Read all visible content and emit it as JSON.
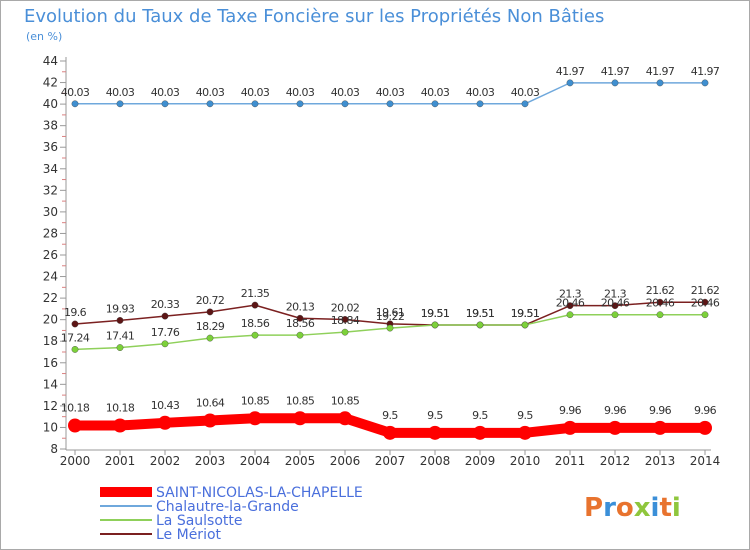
{
  "chart_data": {
    "type": "line",
    "title": "Evolution du Taux de Taxe Foncière sur les Propriétés Non Bâties",
    "unit_label": "(en %)",
    "xlabel": "",
    "ylabel": "",
    "x": [
      2000,
      2001,
      2002,
      2003,
      2004,
      2005,
      2006,
      2007,
      2008,
      2009,
      2010,
      2011,
      2012,
      2013,
      2014
    ],
    "ylim": [
      8,
      44
    ],
    "yticks": [
      8,
      10,
      12,
      14,
      16,
      18,
      20,
      22,
      24,
      26,
      28,
      30,
      32,
      34,
      36,
      38,
      40,
      42,
      44
    ],
    "grid": false,
    "legend_position": "bottom-left",
    "series": [
      {
        "name": "SAINT-NICOLAS-LA-CHAPELLE",
        "color": "#ff0000",
        "highlight": true,
        "values": [
          10.18,
          10.18,
          10.43,
          10.64,
          10.85,
          10.85,
          10.85,
          9.5,
          9.5,
          9.5,
          9.5,
          9.96,
          9.96,
          9.96,
          9.96
        ],
        "labels": [
          "10.18",
          "10.18",
          "10.43",
          "10.64",
          "10.85",
          "10.85",
          "10.85",
          "9.5",
          "9.5",
          "9.5",
          "9.5",
          "9.96",
          "9.96",
          "9.96",
          "9.96"
        ]
      },
      {
        "name": "Chalautre-la-Grande",
        "color": "#6fa8dc",
        "highlight": false,
        "values": [
          40.03,
          40.03,
          40.03,
          40.03,
          40.03,
          40.03,
          40.03,
          40.03,
          40.03,
          40.03,
          40.03,
          41.97,
          41.97,
          41.97,
          41.97
        ],
        "labels": [
          "40.03",
          "40.03",
          "40.03",
          "40.03",
          "40.03",
          "40.03",
          "40.03",
          "40.03",
          "40.03",
          "40.03",
          "40.03",
          "41.97",
          "41.97",
          "41.97",
          "41.97"
        ]
      },
      {
        "name": "La Saulsotte",
        "color": "#8fd05a",
        "highlight": false,
        "values": [
          17.24,
          17.41,
          17.76,
          18.29,
          18.56,
          18.56,
          18.84,
          19.22,
          19.51,
          19.51,
          19.51,
          20.46,
          20.46,
          20.46,
          20.46
        ],
        "labels": [
          "17.24",
          "17.41",
          "17.76",
          "18.29",
          "18.56",
          "18.56",
          "18.84",
          "19.22",
          "19.51",
          "19.51",
          "19.51",
          "20.46",
          "20.46",
          "20.46",
          "20.46"
        ]
      },
      {
        "name": "Le Mériot",
        "color": "#7b2020",
        "highlight": false,
        "values": [
          19.6,
          19.93,
          20.33,
          20.72,
          21.35,
          20.13,
          20.02,
          19.61,
          19.51,
          19.51,
          19.51,
          21.3,
          21.3,
          21.62,
          21.62
        ],
        "labels": [
          "19.6",
          "19.93",
          "20.33",
          "20.72",
          "21.35",
          "20.13",
          "20.02",
          "19.61",
          "19.51",
          "19.51",
          "19.51",
          "21.3",
          "21.3",
          "21.62",
          "21.62"
        ]
      }
    ]
  },
  "logo": {
    "text": "Proxiti"
  }
}
